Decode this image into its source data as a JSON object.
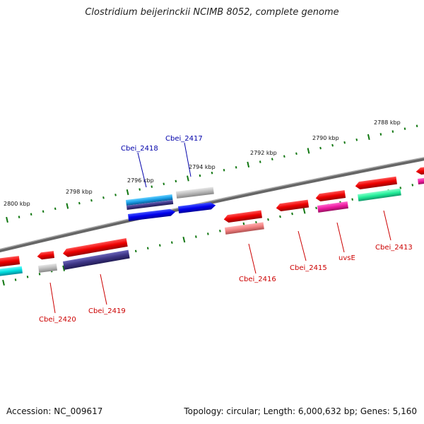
{
  "title": "Clostridium beijerinckii NCIMB 8052, complete genome",
  "footer": {
    "accession": "Accession: NC_009617",
    "topology": "Topology: circular; Length: 6,000,632 bp; Genes: 5,160"
  },
  "colors": {
    "backbone": "#777777",
    "tick": "#117711",
    "label_red": "#cc0000",
    "label_blue": "#0000aa"
  },
  "chart_data": {
    "type": "genome-map",
    "units": "kbp",
    "tick_labels": [
      "2800 kbp",
      "2798 kbp",
      "2796 kbp",
      "2794 kbp",
      "2792 kbp",
      "2790 kbp",
      "2788 kbp"
    ],
    "gene_labels": [
      {
        "text": "Cbei_2418",
        "strand": "forward"
      },
      {
        "text": "Cbei_2417",
        "strand": "forward"
      },
      {
        "text": "Cbei_2420",
        "strand": "reverse"
      },
      {
        "text": "Cbei_2419",
        "strand": "reverse"
      },
      {
        "text": "Cbei_2416",
        "strand": "reverse"
      },
      {
        "text": "Cbei_2415",
        "strand": "reverse"
      },
      {
        "text": "uvsE",
        "strand": "reverse"
      },
      {
        "text": "Cbei_2413",
        "strand": "reverse"
      }
    ]
  }
}
